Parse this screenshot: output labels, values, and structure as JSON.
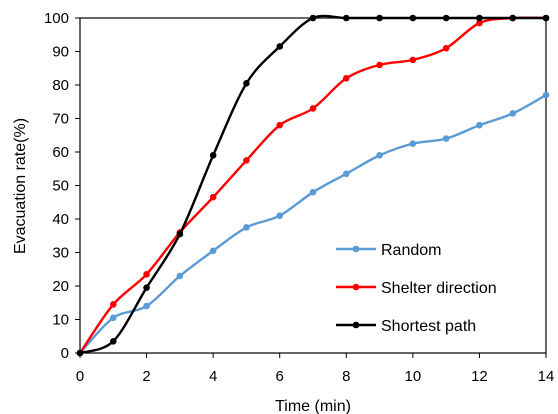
{
  "chart_data": {
    "type": "line",
    "xlabel": "Time (min)",
    "ylabel": "Evacuation rate(%)",
    "xlim": [
      0,
      14
    ],
    "ylim": [
      0,
      100
    ],
    "xticks": [
      "0",
      "2",
      "4",
      "6",
      "8",
      "10",
      "12",
      "14"
    ],
    "yticks": [
      "0",
      "10",
      "20",
      "30",
      "40",
      "50",
      "60",
      "70",
      "80",
      "90",
      "100"
    ],
    "grid": false,
    "legend_position": "bottom-right",
    "series": [
      {
        "name": "Random",
        "color": "#5b9bd5",
        "x": [
          0,
          1,
          2,
          3,
          4,
          5,
          6,
          7,
          8,
          9,
          10,
          11,
          12,
          13,
          14
        ],
        "y": [
          0,
          10.5,
          14,
          23,
          30.5,
          37.5,
          41,
          48,
          53.5,
          59,
          62.5,
          64,
          68,
          71.5,
          77
        ]
      },
      {
        "name": "Shelter direction",
        "color": "#ff0000",
        "x": [
          0,
          1,
          2,
          3,
          4,
          5,
          6,
          7,
          8,
          9,
          10,
          11,
          12,
          13,
          14
        ],
        "y": [
          0,
          14.5,
          23.5,
          36,
          46.5,
          57.5,
          68,
          73,
          82,
          86,
          87.5,
          91,
          98.5,
          100,
          100
        ]
      },
      {
        "name": "Shortest path",
        "color": "#000000",
        "x": [
          0,
          1,
          2,
          3,
          4,
          5,
          6,
          7,
          8,
          9,
          10,
          11,
          12,
          13,
          14
        ],
        "y": [
          0,
          3.5,
          19.5,
          35.5,
          59,
          80.5,
          91.5,
          100,
          100,
          100,
          100,
          100,
          100,
          100,
          100
        ]
      }
    ]
  }
}
